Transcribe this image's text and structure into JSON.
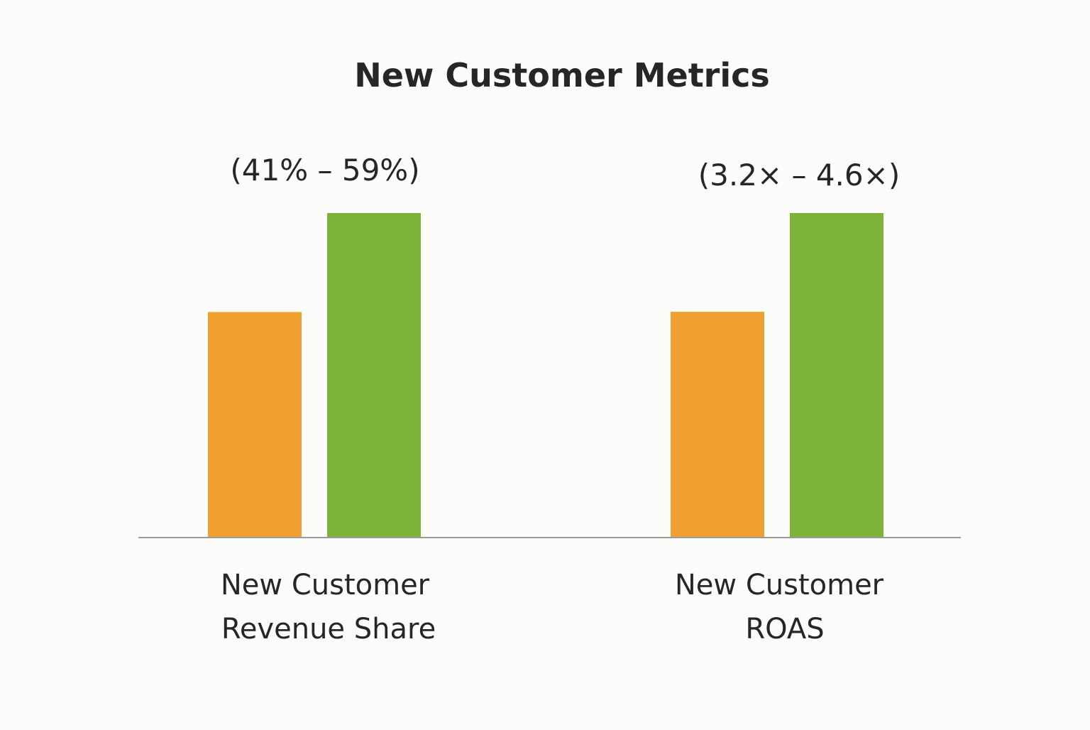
{
  "chart_data": {
    "type": "bar",
    "title": "New Customer Metrics",
    "xlabel": "",
    "ylabel": "",
    "grid": false,
    "legend": "none",
    "colors": {
      "low": "#F0A030",
      "high": "#7DB338",
      "axis": "#9a9a9a"
    },
    "groups": [
      {
        "category_lines": [
          "New Customer",
          "Revenue Share"
        ],
        "range_label": "(41% – 59%)",
        "values": [
          41,
          59
        ],
        "unit": "%"
      },
      {
        "category_lines": [
          "New Customer",
          "ROAS"
        ],
        "range_label": "(3.2× – 4.6×)",
        "values": [
          3.2,
          4.6
        ],
        "unit": "×"
      }
    ]
  }
}
